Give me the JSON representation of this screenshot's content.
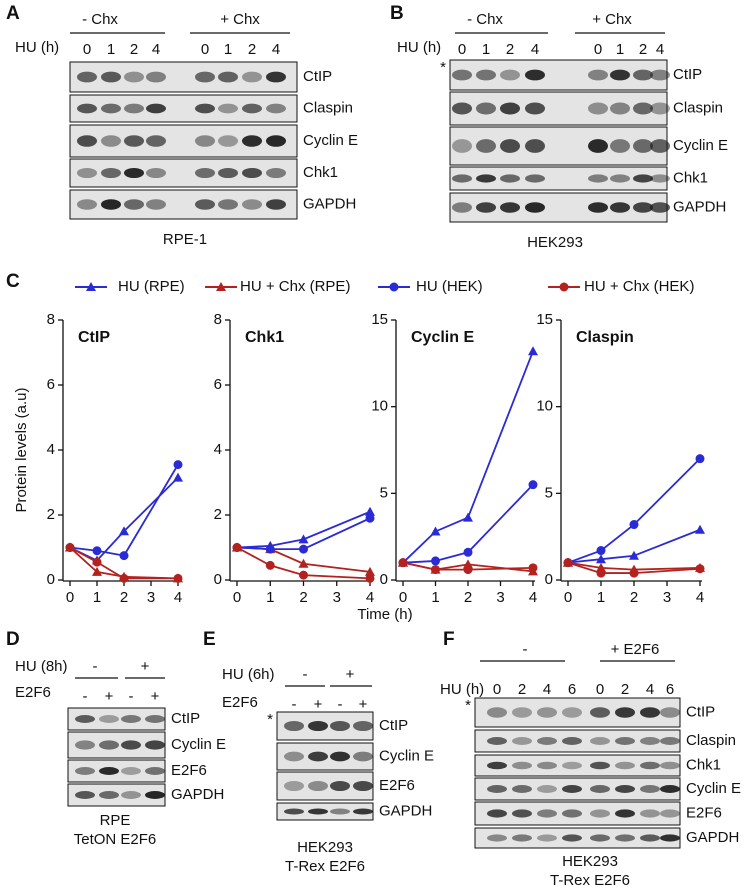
{
  "panel_labels": [
    "A",
    "B",
    "C",
    "D",
    "E",
    "F"
  ],
  "blots": {
    "A": {
      "groups": [
        "- Chx",
        "+ Chx"
      ],
      "row_label": "HU (h)",
      "lanes": [
        "0",
        "1",
        "2",
        "4",
        "0",
        "1",
        "2",
        "4"
      ],
      "proteins": [
        "CtIP",
        "Claspin",
        "Cyclin E",
        "Chk1",
        "GAPDH"
      ],
      "caption": [
        "RPE-1"
      ]
    },
    "B": {
      "groups": [
        "- Chx",
        "+ Chx"
      ],
      "row_label": "HU (h)",
      "lanes": [
        "0",
        "1",
        "2",
        "4",
        "0",
        "1",
        "2",
        "4"
      ],
      "marker": "*",
      "proteins": [
        "CtIP",
        "Claspin",
        "Cyclin E",
        "Chk1",
        "GAPDH"
      ],
      "caption": [
        "HEK293"
      ]
    },
    "D": {
      "group_label": "HU (8h)",
      "groups": [
        "-",
        "+"
      ],
      "row_label": "E2F6",
      "lanes": [
        "-",
        "+",
        "-",
        "+"
      ],
      "proteins": [
        "CtIP",
        "Cyclin E",
        "E2F6",
        "GAPDH"
      ],
      "caption": [
        "RPE",
        "TetON E2F6"
      ]
    },
    "E": {
      "group_label": "HU (6h)",
      "groups": [
        "-",
        "+"
      ],
      "row_label": "E2F6",
      "lanes": [
        "-",
        "+",
        "-",
        "+"
      ],
      "marker": "*",
      "proteins": [
        "CtIP",
        "Cyclin E",
        "E2F6",
        "GAPDH"
      ],
      "caption": [
        "HEK293",
        "T-Rex E2F6"
      ]
    },
    "F": {
      "groups": [
        "-",
        "+ E2F6"
      ],
      "row_label": "HU (h)",
      "lanes": [
        "0",
        "2",
        "4",
        "6",
        "0",
        "2",
        "4",
        "6"
      ],
      "marker": "*",
      "proteins": [
        "CtIP",
        "Claspin",
        "Chk1",
        "Cyclin E",
        "E2F6",
        "GAPDH"
      ],
      "caption": [
        "HEK293",
        "T-Rex E2F6"
      ]
    }
  },
  "chart_data": [
    {
      "type": "line",
      "title": "CtIP",
      "ylabel": "Protein levels (a.u)",
      "x": [
        0,
        1,
        2,
        4
      ],
      "xlim": [
        0,
        4
      ],
      "xticks": [
        0,
        1,
        2,
        3,
        4
      ],
      "ylim": [
        0,
        8
      ],
      "yticks": [
        0,
        2,
        4,
        6,
        8
      ],
      "series": [
        {
          "name": "HU (RPE)",
          "color": "#2b2bd6",
          "marker": "triangle",
          "values": [
            1,
            0.6,
            1.5,
            3.15
          ]
        },
        {
          "name": "HU + Chx (RPE)",
          "color": "#b3221e",
          "marker": "triangle",
          "values": [
            1,
            0.25,
            0.1,
            0.05
          ]
        },
        {
          "name": "HU (HEK)",
          "color": "#2b2bd6",
          "marker": "circle",
          "values": [
            1,
            0.9,
            0.75,
            3.55
          ]
        },
        {
          "name": "HU + Chx (HEK)",
          "color": "#b3221e",
          "marker": "circle",
          "values": [
            1,
            0.55,
            0.05,
            0.05
          ]
        }
      ]
    },
    {
      "type": "line",
      "title": "Chk1",
      "x": [
        0,
        1,
        2,
        4
      ],
      "xlim": [
        0,
        4
      ],
      "xticks": [
        0,
        1,
        2,
        3,
        4
      ],
      "ylim": [
        0,
        8
      ],
      "yticks": [
        0,
        2,
        4,
        6,
        8
      ],
      "series": [
        {
          "name": "HU (RPE)",
          "color": "#2b2bd6",
          "marker": "triangle",
          "values": [
            1,
            1.05,
            1.25,
            2.1
          ]
        },
        {
          "name": "HU + Chx (RPE)",
          "color": "#b3221e",
          "marker": "triangle",
          "values": [
            1,
            0.95,
            0.5,
            0.25
          ]
        },
        {
          "name": "HU (HEK)",
          "color": "#2b2bd6",
          "marker": "circle",
          "values": [
            1,
            0.95,
            0.95,
            1.9
          ]
        },
        {
          "name": "HU + Chx (HEK)",
          "color": "#b3221e",
          "marker": "circle",
          "values": [
            1,
            0.45,
            0.15,
            0.05
          ]
        }
      ]
    },
    {
      "type": "line",
      "title": "Cyclin E",
      "xlabel": "Time (h)",
      "x": [
        0,
        1,
        2,
        4
      ],
      "xlim": [
        0,
        4
      ],
      "xticks": [
        0,
        1,
        2,
        3,
        4
      ],
      "ylim": [
        0,
        15
      ],
      "yticks": [
        0,
        5,
        10,
        15
      ],
      "series": [
        {
          "name": "HU (RPE)",
          "color": "#2b2bd6",
          "marker": "triangle",
          "values": [
            1,
            2.8,
            3.6,
            13.2
          ]
        },
        {
          "name": "HU + Chx (RPE)",
          "color": "#b3221e",
          "marker": "triangle",
          "values": [
            1,
            0.6,
            0.9,
            0.5
          ]
        },
        {
          "name": "HU (HEK)",
          "color": "#2b2bd6",
          "marker": "circle",
          "values": [
            1,
            1.1,
            1.6,
            5.5
          ]
        },
        {
          "name": "HU + Chx (HEK)",
          "color": "#b3221e",
          "marker": "circle",
          "values": [
            1,
            0.6,
            0.6,
            0.7
          ]
        }
      ]
    },
    {
      "type": "line",
      "title": "Claspin",
      "x": [
        0,
        1,
        2,
        4
      ],
      "xlim": [
        0,
        4
      ],
      "xticks": [
        0,
        1,
        2,
        3,
        4
      ],
      "ylim": [
        0,
        15
      ],
      "yticks": [
        0,
        5,
        10,
        15
      ],
      "series": [
        {
          "name": "HU (RPE)",
          "color": "#2b2bd6",
          "marker": "triangle",
          "values": [
            1,
            1.2,
            1.4,
            2.9
          ]
        },
        {
          "name": "HU + Chx (RPE)",
          "color": "#b3221e",
          "marker": "triangle",
          "values": [
            1,
            0.7,
            0.6,
            0.7
          ]
        },
        {
          "name": "HU (HEK)",
          "color": "#2b2bd6",
          "marker": "circle",
          "values": [
            1,
            1.7,
            3.2,
            7
          ]
        },
        {
          "name": "HU + Chx (HEK)",
          "color": "#b3221e",
          "marker": "circle",
          "values": [
            1,
            0.4,
            0.4,
            0.65
          ]
        }
      ]
    }
  ]
}
